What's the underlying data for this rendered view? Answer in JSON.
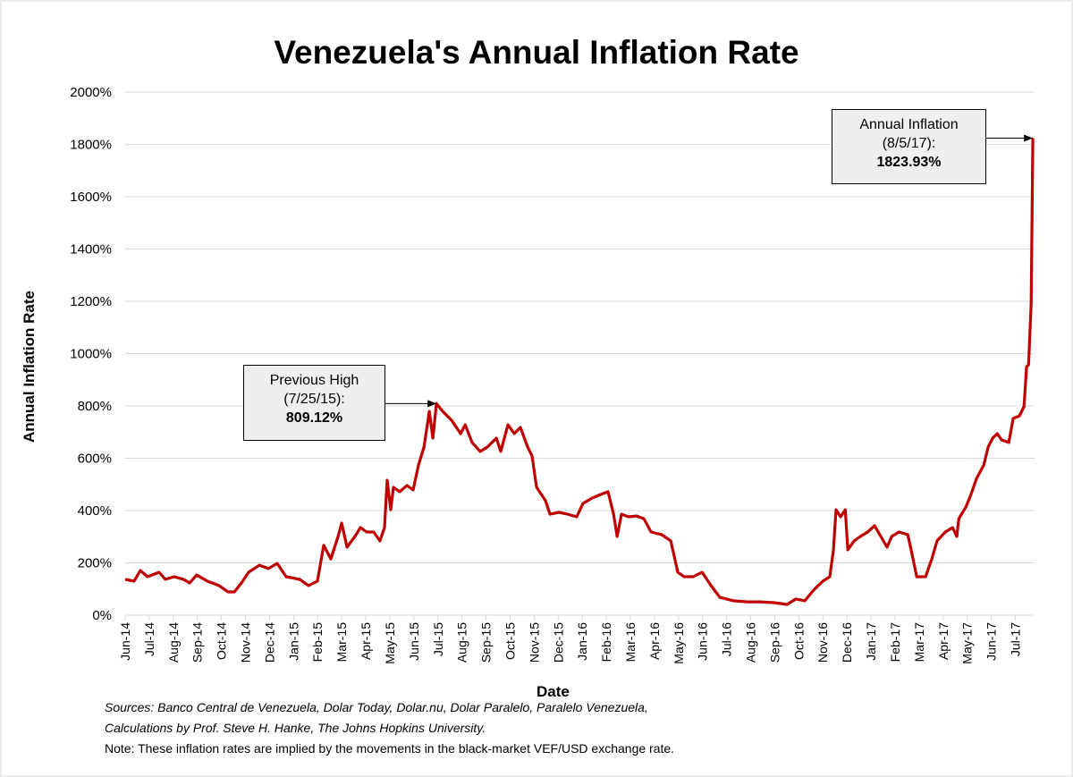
{
  "chart_data": {
    "type": "line",
    "title": "Venezuela's Annual Inflation Rate",
    "xlabel": "Date",
    "ylabel": "Annual Inflation Rate",
    "x_unit": "months since Jun-14",
    "xlim": [
      0,
      37.8
    ],
    "ylim": [
      0,
      2000
    ],
    "grid": true,
    "y_ticks": [
      0,
      200,
      400,
      600,
      800,
      1000,
      1200,
      1400,
      1600,
      1800,
      2000
    ],
    "y_tick_labels": [
      "0%",
      "200%",
      "400%",
      "600%",
      "800%",
      "1000%",
      "1200%",
      "1400%",
      "1600%",
      "1800%",
      "2000%"
    ],
    "x_tick_labels": [
      "Jun-14",
      "Jul-14",
      "Aug-14",
      "Sep-14",
      "Oct-14",
      "Nov-14",
      "Dec-14",
      "Jan-15",
      "Feb-15",
      "Mar-15",
      "Apr-15",
      "May-15",
      "Jun-15",
      "Jul-15",
      "Aug-15",
      "Sep-15",
      "Oct-15",
      "Nov-15",
      "Dec-15",
      "Jan-16",
      "Feb-16",
      "Mar-16",
      "Apr-16",
      "May-16",
      "Jun-16",
      "Jul-16",
      "Aug-16",
      "Sep-16",
      "Oct-16",
      "Nov-16",
      "Dec-16",
      "Jan-17",
      "Feb-17",
      "Mar-17",
      "Apr-17",
      "May-17",
      "Jun-17",
      "Jul-17"
    ],
    "series": [
      {
        "name": "Annual Inflation Rate",
        "color": "#c00000",
        "points": [
          [
            0,
            137
          ],
          [
            0.37,
            130
          ],
          [
            0.63,
            171
          ],
          [
            0.93,
            147
          ],
          [
            1.41,
            164
          ],
          [
            1.67,
            137
          ],
          [
            2.04,
            147
          ],
          [
            2.42,
            137
          ],
          [
            2.68,
            123
          ],
          [
            2.97,
            154
          ],
          [
            3.42,
            130
          ],
          [
            3.9,
            113
          ],
          [
            4.28,
            89
          ],
          [
            4.54,
            89
          ],
          [
            4.83,
            123
          ],
          [
            5.13,
            164
          ],
          [
            5.58,
            191
          ],
          [
            5.95,
            178
          ],
          [
            6.32,
            198
          ],
          [
            6.69,
            147
          ],
          [
            7.25,
            137
          ],
          [
            7.62,
            113
          ],
          [
            7.99,
            130
          ],
          [
            8.25,
            267
          ],
          [
            8.55,
            215
          ],
          [
            8.85,
            301
          ],
          [
            9.0,
            352
          ],
          [
            9.22,
            260
          ],
          [
            9.55,
            301
          ],
          [
            9.78,
            335
          ],
          [
            10.04,
            318
          ],
          [
            10.33,
            318
          ],
          [
            10.59,
            284
          ],
          [
            10.78,
            335
          ],
          [
            10.89,
            516
          ],
          [
            11.04,
            403
          ],
          [
            11.15,
            489
          ],
          [
            11.41,
            472
          ],
          [
            11.71,
            496
          ],
          [
            11.97,
            479
          ],
          [
            12.19,
            574
          ],
          [
            12.42,
            643
          ],
          [
            12.64,
            779
          ],
          [
            12.79,
            677
          ],
          [
            12.94,
            809
          ],
          [
            13.2,
            779
          ],
          [
            13.57,
            745
          ],
          [
            13.94,
            694
          ],
          [
            14.13,
            728
          ],
          [
            14.42,
            660
          ],
          [
            14.76,
            626
          ],
          [
            15.06,
            643
          ],
          [
            15.43,
            677
          ],
          [
            15.61,
            626
          ],
          [
            15.91,
            728
          ],
          [
            16.17,
            694
          ],
          [
            16.43,
            718
          ],
          [
            16.73,
            643
          ],
          [
            16.91,
            609
          ],
          [
            17.1,
            489
          ],
          [
            17.47,
            438
          ],
          [
            17.66,
            386
          ],
          [
            18.03,
            393
          ],
          [
            18.4,
            386
          ],
          [
            18.77,
            376
          ],
          [
            19.03,
            427
          ],
          [
            19.41,
            448
          ],
          [
            19.78,
            462
          ],
          [
            20.07,
            472
          ],
          [
            20.3,
            386
          ],
          [
            20.45,
            301
          ],
          [
            20.63,
            386
          ],
          [
            20.93,
            376
          ],
          [
            21.26,
            379
          ],
          [
            21.56,
            369
          ],
          [
            21.86,
            318
          ],
          [
            22.3,
            308
          ],
          [
            22.68,
            284
          ],
          [
            22.97,
            164
          ],
          [
            23.23,
            147
          ],
          [
            23.61,
            147
          ],
          [
            23.98,
            164
          ],
          [
            24.35,
            113
          ],
          [
            24.72,
            68
          ],
          [
            25.28,
            55
          ],
          [
            25.84,
            51
          ],
          [
            26.39,
            51
          ],
          [
            26.95,
            48
          ],
          [
            27.51,
            41
          ],
          [
            27.88,
            62
          ],
          [
            28.25,
            55
          ],
          [
            28.62,
            96
          ],
          [
            29.0,
            130
          ],
          [
            29.29,
            147
          ],
          [
            29.44,
            250
          ],
          [
            29.55,
            403
          ],
          [
            29.74,
            376
          ],
          [
            29.93,
            403
          ],
          [
            30.04,
            250
          ],
          [
            30.3,
            284
          ],
          [
            30.56,
            301
          ],
          [
            30.86,
            318
          ],
          [
            31.15,
            342
          ],
          [
            31.41,
            301
          ],
          [
            31.67,
            260
          ],
          [
            31.86,
            301
          ],
          [
            32.16,
            318
          ],
          [
            32.53,
            308
          ],
          [
            32.71,
            232
          ],
          [
            32.9,
            147
          ],
          [
            33.27,
            147
          ],
          [
            33.53,
            215
          ],
          [
            33.75,
            284
          ],
          [
            34.09,
            318
          ],
          [
            34.39,
            335
          ],
          [
            34.57,
            301
          ],
          [
            34.65,
            369
          ],
          [
            34.94,
            413
          ],
          [
            35.13,
            455
          ],
          [
            35.39,
            523
          ],
          [
            35.69,
            574
          ],
          [
            35.87,
            643
          ],
          [
            36.06,
            677
          ],
          [
            36.25,
            694
          ],
          [
            36.43,
            670
          ],
          [
            36.73,
            660
          ],
          [
            36.91,
            752
          ],
          [
            37.17,
            762
          ],
          [
            37.36,
            797
          ],
          [
            37.47,
            950
          ],
          [
            37.55,
            957
          ],
          [
            37.66,
            1190
          ],
          [
            37.73,
            1823.93
          ]
        ]
      }
    ],
    "annotations": [
      {
        "line1": "Previous High",
        "line2": "(7/25/15):",
        "value": "809.12%",
        "x": 12.94,
        "y": 809.12
      },
      {
        "line1": "Annual Inflation",
        "line2": "(8/5/17):",
        "value": "1823.93%",
        "x": 37.73,
        "y": 1823.93
      }
    ]
  },
  "footer": {
    "sources_line1": "Sources: Banco Central de Venezuela, Dolar Today, Dolar.nu, Dolar Paralelo, Paralelo Venezuela,",
    "sources_line2": "Calculations by Prof. Steve H. Hanke, The Johns Hopkins University.",
    "note": "Note: These inflation rates are implied by the movements in the black-market VEF/USD exchange rate."
  }
}
